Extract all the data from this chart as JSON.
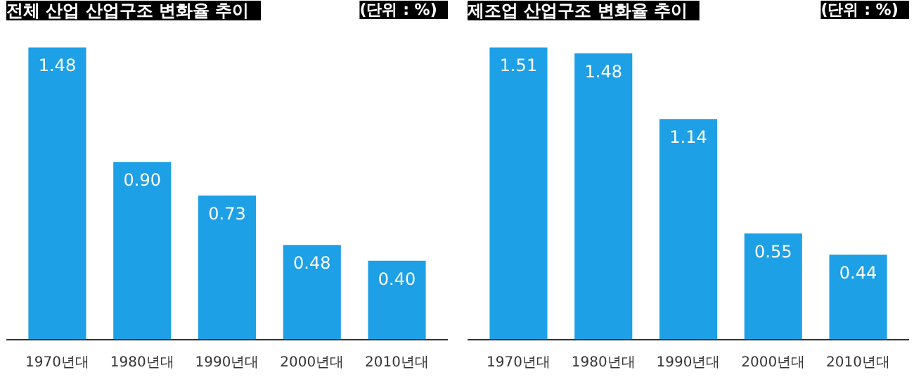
{
  "chart_data": [
    {
      "type": "bar",
      "title": "전체 산업 산업구조 변화율 추이",
      "subtitle": "(단위 : %)",
      "categories": [
        "1970년대",
        "1980년대",
        "1990년대",
        "2000년대",
        "2010년대"
      ],
      "values": [
        1.48,
        0.9,
        0.73,
        0.48,
        0.4
      ],
      "value_labels": [
        "1.48",
        "0.90",
        "0.73",
        "0.48",
        "0.40"
      ],
      "color": "#1ea0e6"
    },
    {
      "type": "bar",
      "title": "제조업 산업구조 변화율 추이",
      "subtitle": "(단위 : %)",
      "categories": [
        "1970년대",
        "1980년대",
        "1990년대",
        "2000년대",
        "2010년대"
      ],
      "values": [
        1.51,
        1.48,
        1.14,
        0.55,
        0.44
      ],
      "value_labels": [
        "1.51",
        "1.48",
        "1.14",
        "0.55",
        "0.44"
      ],
      "color": "#1ea0e6"
    }
  ]
}
